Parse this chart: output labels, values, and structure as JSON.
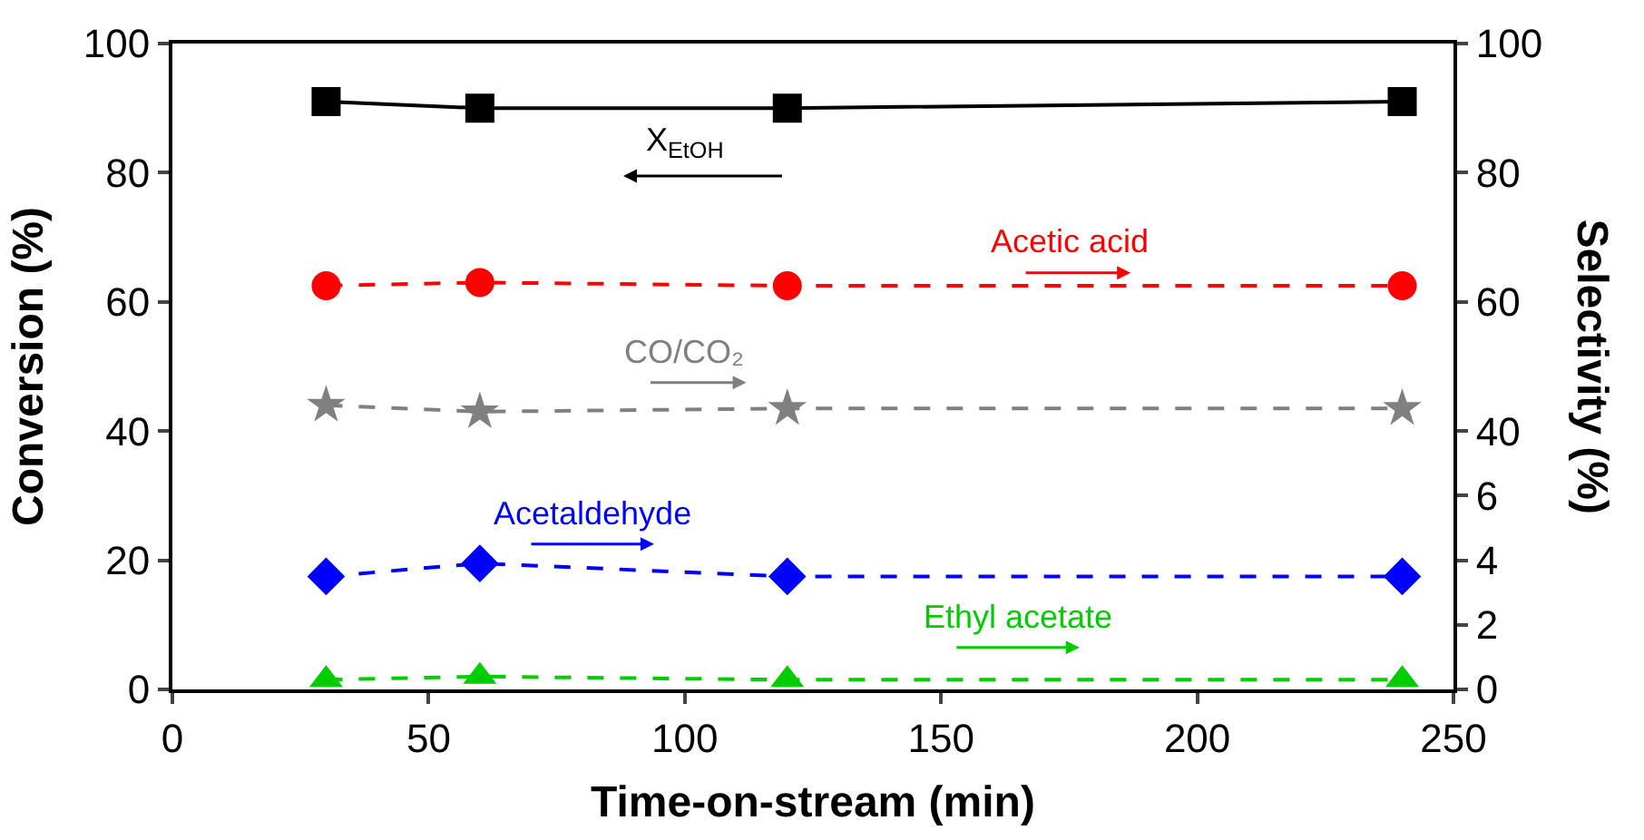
{
  "chart_data": {
    "type": "line",
    "xlabel": "Time-on-stream (min)",
    "ylabel": "Conversion (%)",
    "y2label": "Selectivity (%)",
    "x": [
      30,
      60,
      120,
      240
    ],
    "xlim": [
      0,
      250
    ],
    "xticks": [
      0,
      50,
      100,
      150,
      200,
      250
    ],
    "ylim": [
      0,
      100
    ],
    "yticks": [
      0,
      20,
      40,
      60,
      80,
      100
    ],
    "y2lim": [
      0,
      20
    ],
    "y2ticks": [
      0,
      2,
      4,
      6
    ],
    "y3lim": [
      0,
      100
    ],
    "y3ticks": [
      40,
      60,
      80,
      100
    ],
    "legend": false,
    "series": [
      {
        "name": "X$_{EtOH}$",
        "color": "#000000",
        "values": [
          91,
          90,
          90,
          91
        ],
        "marker": "square",
        "line_style": "solid"
      },
      {
        "name": "Acetic acid",
        "color": "#ff0000",
        "values": [
          62.5,
          63,
          62.5,
          62.5
        ],
        "axis": "y3",
        "marker": "circle",
        "line_style": "dashed"
      },
      {
        "name": "CO/CO₂",
        "color": "#808080",
        "values": [
          44,
          43,
          43.5,
          43.5
        ],
        "axis": "y3",
        "marker": "star",
        "line_style": "dashed"
      },
      {
        "name": "Acetaldehyde",
        "color": "#0000ff",
        "values": [
          3.5,
          3.9,
          3.5,
          3.5
        ],
        "axis": "y2",
        "marker": "diamond",
        "line_style": "dashed"
      },
      {
        "name": "Ethyl acetate",
        "color": "#00cc00",
        "values": [
          0.3,
          0.4,
          0.3,
          0.3
        ],
        "axis": "y2",
        "marker": "triangle",
        "line_style": "dashed"
      }
    ]
  }
}
